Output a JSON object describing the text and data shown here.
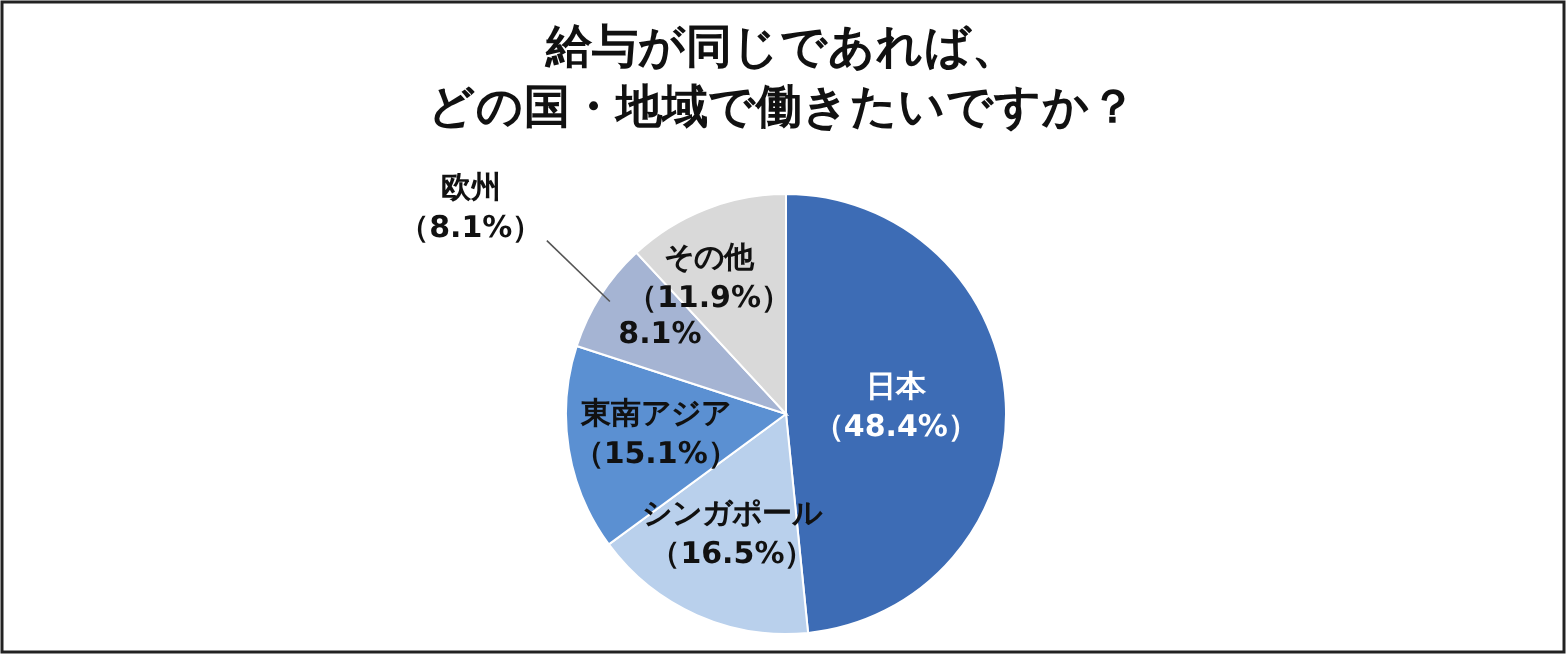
{
  "chart_data": {
    "type": "pie",
    "title": "給与が同じであれば、どの国・地域で働きたいですか？",
    "categories": [
      "日本",
      "シンガポール",
      "東南アジア",
      "欧州",
      "その他"
    ],
    "values": [
      48.4,
      16.5,
      15.1,
      8.1,
      11.9
    ],
    "value_labels": [
      "（48.4%）",
      "（16.5%）",
      "（15.1%）",
      "（8.1%）",
      "（11.9%）"
    ],
    "colors": [
      "#3d6cb5",
      "#b9d0ec",
      "#5b90d2",
      "#a5b4d3",
      "#d9d9d9"
    ],
    "annotations": [
      "8.1%"
    ],
    "legend": false
  }
}
